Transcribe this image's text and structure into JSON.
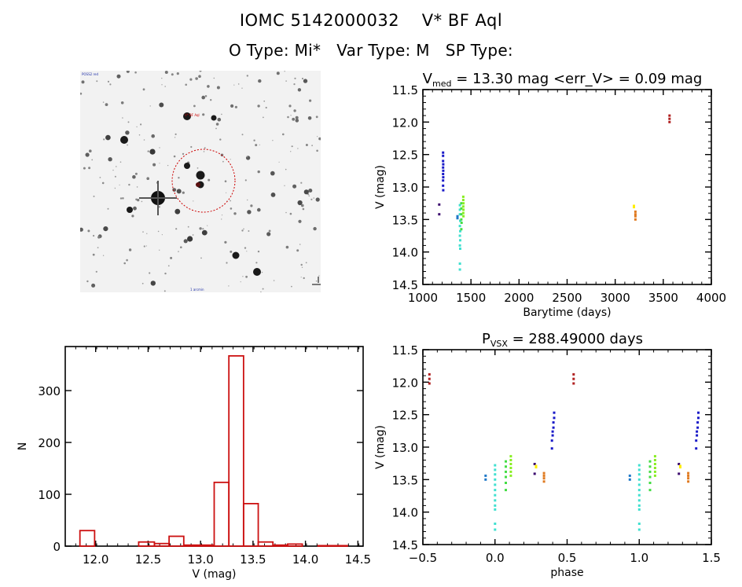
{
  "header": {
    "title_line": "IOMC 5142000032    V* BF Aql",
    "info_line": "O Type: Mi*   Var Type: M   SP Type:"
  },
  "finder_image": {
    "description": "inverted star field finding chart with dashed red circle around target",
    "target_label": "V* BF Aql",
    "circle_color": "#cc0000"
  },
  "chart_data": [
    {
      "id": "light_curve",
      "type": "scatter",
      "title": "V_med = 13.30 mag <err_V> = 0.09 mag",
      "title_main": "V",
      "title_sub": "med",
      "title_rest": " = 13.30 mag <err_V> = 0.09 mag",
      "xlabel": "Barytime (days)",
      "ylabel": "V (mag)",
      "xlim": [
        1000,
        4000
      ],
      "ylim": [
        14.5,
        11.5
      ],
      "y_inverted": true,
      "xticks": [
        1000,
        1500,
        2000,
        2500,
        3000,
        3500,
        4000
      ],
      "yticks": [
        11.5,
        12.0,
        12.5,
        13.0,
        13.5,
        14.0,
        14.5
      ],
      "ytick_labels": [
        "11.5",
        "12.0",
        "12.5",
        "13.0",
        "13.5",
        "14.0",
        "14.5"
      ],
      "groups": [
        {
          "color": "#3b0a6e",
          "points": [
            [
              1170,
              13.27
            ],
            [
              1170,
              13.42
            ]
          ]
        },
        {
          "color": "#1a1ac8",
          "points": [
            [
              1210,
              12.47
            ],
            [
              1210,
              12.52
            ],
            [
              1210,
              12.6
            ],
            [
              1212,
              12.65
            ],
            [
              1210,
              12.7
            ],
            [
              1212,
              12.75
            ],
            [
              1210,
              12.8
            ],
            [
              1212,
              12.85
            ],
            [
              1210,
              12.9
            ],
            [
              1210,
              12.98
            ],
            [
              1212,
              13.05
            ]
          ]
        },
        {
          "color": "#1e78c8",
          "points": [
            [
              1360,
              13.45
            ],
            [
              1360,
              13.48
            ]
          ]
        },
        {
          "color": "#40e0d0",
          "points": [
            [
              1385,
              13.28
            ],
            [
              1385,
              13.35
            ],
            [
              1385,
              13.42
            ],
            [
              1388,
              13.52
            ],
            [
              1385,
              13.6
            ],
            [
              1388,
              13.68
            ],
            [
              1385,
              13.75
            ],
            [
              1388,
              13.82
            ],
            [
              1385,
              13.9
            ],
            [
              1388,
              13.95
            ],
            [
              1385,
              14.18
            ],
            [
              1385,
              14.27
            ]
          ]
        },
        {
          "color": "#44dd44",
          "points": [
            [
              1400,
              13.25
            ],
            [
              1400,
              13.33
            ],
            [
              1400,
              13.42
            ],
            [
              1400,
              13.5
            ],
            [
              1402,
              13.55
            ],
            [
              1400,
              13.65
            ]
          ]
        },
        {
          "color": "#88ee22",
          "points": [
            [
              1420,
              13.15
            ],
            [
              1420,
              13.2
            ],
            [
              1422,
              13.25
            ],
            [
              1420,
              13.3
            ],
            [
              1422,
              13.35
            ],
            [
              1420,
              13.4
            ],
            [
              1422,
              13.45
            ]
          ]
        },
        {
          "color": "#ffee00",
          "points": [
            [
              3195,
              13.29
            ],
            [
              3195,
              13.31
            ]
          ]
        },
        {
          "color": "#e07a20",
          "points": [
            [
              3210,
              13.38
            ],
            [
              3210,
              13.42
            ],
            [
              3210,
              13.45
            ],
            [
              3210,
              13.5
            ]
          ]
        },
        {
          "color": "#b02020",
          "points": [
            [
              3565,
              11.9
            ],
            [
              3565,
              11.95
            ],
            [
              3565,
              12.0
            ]
          ]
        }
      ]
    },
    {
      "id": "histogram",
      "type": "bar",
      "title": "",
      "xlabel": "V (mag)",
      "ylabel": "N",
      "xlim": [
        11.71,
        14.55
      ],
      "ylim": [
        0,
        385
      ],
      "xticks": [
        12.0,
        12.5,
        13.0,
        13.5,
        14.0,
        14.5
      ],
      "xtick_labels": [
        "12.0",
        "12.5",
        "13.0",
        "13.5",
        "14.0",
        "14.5"
      ],
      "yticks": [
        0,
        100,
        200,
        300
      ],
      "ytick_labels": [
        "0",
        "100",
        "200",
        "300"
      ],
      "bar_color": "#cc1111",
      "bins": [
        {
          "x0": 11.85,
          "x1": 11.99,
          "count": 30
        },
        {
          "x0": 11.99,
          "x1": 12.41,
          "count": 0
        },
        {
          "x0": 12.41,
          "x1": 12.56,
          "count": 8
        },
        {
          "x0": 12.56,
          "x1": 12.7,
          "count": 5
        },
        {
          "x0": 12.7,
          "x1": 12.84,
          "count": 19
        },
        {
          "x0": 12.84,
          "x1": 13.13,
          "count": 2
        },
        {
          "x0": 13.13,
          "x1": 13.27,
          "count": 123
        },
        {
          "x0": 13.27,
          "x1": 13.41,
          "count": 367
        },
        {
          "x0": 13.41,
          "x1": 13.55,
          "count": 82
        },
        {
          "x0": 13.55,
          "x1": 13.69,
          "count": 8
        },
        {
          "x0": 13.69,
          "x1": 13.83,
          "count": 2
        },
        {
          "x0": 13.83,
          "x1": 13.97,
          "count": 4
        },
        {
          "x0": 13.97,
          "x1": 14.12,
          "count": 0
        },
        {
          "x0": 14.12,
          "x1": 14.4,
          "count": 1
        }
      ]
    },
    {
      "id": "phase_curve",
      "type": "scatter",
      "title": "P_vsx = 288.49000 days",
      "title_main": "P",
      "title_sub": "VSX",
      "title_rest": " = 288.49000 days",
      "xlabel": "phase",
      "ylabel": "V (mag)",
      "xlim": [
        -0.5,
        1.5
      ],
      "ylim": [
        14.5,
        11.5
      ],
      "y_inverted": true,
      "xticks": [
        -0.5,
        0.0,
        0.5,
        1.0,
        1.5
      ],
      "xtick_labels": [
        "−0.5",
        "0.0",
        "0.5",
        "1.0",
        "1.5"
      ],
      "yticks": [
        11.5,
        12.0,
        12.5,
        13.0,
        13.5,
        14.0,
        14.5
      ],
      "ytick_labels": [
        "11.5",
        "12.0",
        "12.5",
        "13.0",
        "13.5",
        "14.0",
        "14.5"
      ],
      "groups": [
        {
          "color": "#b02020",
          "points": [
            [
              -0.455,
              11.88
            ],
            [
              -0.455,
              11.95
            ],
            [
              -0.455,
              12.02
            ]
          ]
        },
        {
          "color": "#1e78c8",
          "points": [
            [
              -0.065,
              13.44
            ],
            [
              -0.065,
              13.5
            ]
          ]
        },
        {
          "color": "#40e0d0",
          "points": [
            [
              0.0,
              13.28
            ],
            [
              0.0,
              13.35
            ],
            [
              0.0,
              13.42
            ],
            [
              0.0,
              13.5
            ],
            [
              0.0,
              13.58
            ],
            [
              0.0,
              13.66
            ],
            [
              0.0,
              13.74
            ],
            [
              0.0,
              13.82
            ],
            [
              0.0,
              13.9
            ],
            [
              0.0,
              13.96
            ],
            [
              0.0,
              14.18
            ],
            [
              0.0,
              14.27
            ]
          ]
        },
        {
          "color": "#44dd44",
          "points": [
            [
              0.075,
              13.22
            ],
            [
              0.075,
              13.3
            ],
            [
              0.075,
              13.38
            ],
            [
              0.075,
              13.46
            ],
            [
              0.075,
              13.55
            ],
            [
              0.075,
              13.66
            ]
          ]
        },
        {
          "color": "#88ee22",
          "points": [
            [
              0.11,
              13.14
            ],
            [
              0.11,
              13.2
            ],
            [
              0.11,
              13.26
            ],
            [
              0.11,
              13.32
            ],
            [
              0.11,
              13.38
            ],
            [
              0.11,
              13.44
            ]
          ]
        },
        {
          "color": "#3b0a6e",
          "points": [
            [
              0.275,
              13.26
            ],
            [
              0.275,
              13.41
            ]
          ]
        },
        {
          "color": "#ffee00",
          "points": [
            [
              0.285,
              13.29
            ],
            [
              0.285,
              13.31
            ]
          ]
        },
        {
          "color": "#e07a20",
          "points": [
            [
              0.34,
              13.4
            ],
            [
              0.34,
              13.44
            ],
            [
              0.34,
              13.48
            ],
            [
              0.34,
              13.53
            ]
          ]
        },
        {
          "color": "#1a1ac8",
          "points": [
            [
              0.41,
              12.47
            ],
            [
              0.41,
              12.55
            ],
            [
              0.405,
              12.62
            ],
            [
              0.405,
              12.7
            ],
            [
              0.4,
              12.76
            ],
            [
              0.4,
              12.82
            ],
            [
              0.395,
              12.9
            ],
            [
              0.395,
              13.02
            ]
          ]
        },
        {
          "color": "#b02020",
          "points": [
            [
              0.545,
              11.88
            ],
            [
              0.545,
              11.95
            ],
            [
              0.545,
              12.02
            ]
          ]
        },
        {
          "color": "#1e78c8",
          "points": [
            [
              0.935,
              13.44
            ],
            [
              0.935,
              13.5
            ]
          ]
        },
        {
          "color": "#40e0d0",
          "points": [
            [
              1.0,
              13.28
            ],
            [
              1.0,
              13.35
            ],
            [
              1.0,
              13.42
            ],
            [
              1.0,
              13.5
            ],
            [
              1.0,
              13.58
            ],
            [
              1.0,
              13.66
            ],
            [
              1.0,
              13.74
            ],
            [
              1.0,
              13.82
            ],
            [
              1.0,
              13.9
            ],
            [
              1.0,
              13.96
            ],
            [
              1.0,
              14.18
            ],
            [
              1.0,
              14.27
            ]
          ]
        },
        {
          "color": "#44dd44",
          "points": [
            [
              1.075,
              13.22
            ],
            [
              1.075,
              13.3
            ],
            [
              1.075,
              13.38
            ],
            [
              1.075,
              13.46
            ],
            [
              1.075,
              13.55
            ],
            [
              1.075,
              13.66
            ]
          ]
        },
        {
          "color": "#88ee22",
          "points": [
            [
              1.11,
              13.14
            ],
            [
              1.11,
              13.2
            ],
            [
              1.11,
              13.26
            ],
            [
              1.11,
              13.32
            ],
            [
              1.11,
              13.38
            ],
            [
              1.11,
              13.44
            ]
          ]
        },
        {
          "color": "#3b0a6e",
          "points": [
            [
              1.275,
              13.26
            ],
            [
              1.275,
              13.41
            ]
          ]
        },
        {
          "color": "#ffee00",
          "points": [
            [
              1.285,
              13.29
            ],
            [
              1.285,
              13.31
            ]
          ]
        },
        {
          "color": "#e07a20",
          "points": [
            [
              1.34,
              13.4
            ],
            [
              1.34,
              13.44
            ],
            [
              1.34,
              13.48
            ],
            [
              1.34,
              13.53
            ]
          ]
        },
        {
          "color": "#1a1ac8",
          "points": [
            [
              1.41,
              12.47
            ],
            [
              1.41,
              12.55
            ],
            [
              1.405,
              12.62
            ],
            [
              1.405,
              12.7
            ],
            [
              1.4,
              12.76
            ],
            [
              1.4,
              12.82
            ],
            [
              1.395,
              12.9
            ],
            [
              1.395,
              13.02
            ]
          ]
        }
      ]
    }
  ]
}
